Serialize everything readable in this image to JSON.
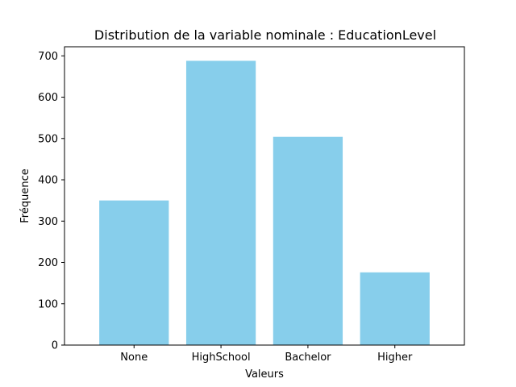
{
  "chart_data": {
    "type": "bar",
    "title": "Distribution de la variable nominale : EducationLevel",
    "xlabel": "Valeurs",
    "ylabel": "Fréquence",
    "categories": [
      "None",
      "HighSchool",
      "Bachelor",
      "Higher"
    ],
    "values": [
      350,
      688,
      504,
      176
    ],
    "ylim": [
      0,
      722
    ],
    "yticks": [
      0,
      100,
      200,
      300,
      400,
      500,
      600,
      700
    ],
    "grid": false,
    "legend": "none",
    "colors": {
      "bar": "#87CEEB",
      "axis": "#000000"
    }
  }
}
